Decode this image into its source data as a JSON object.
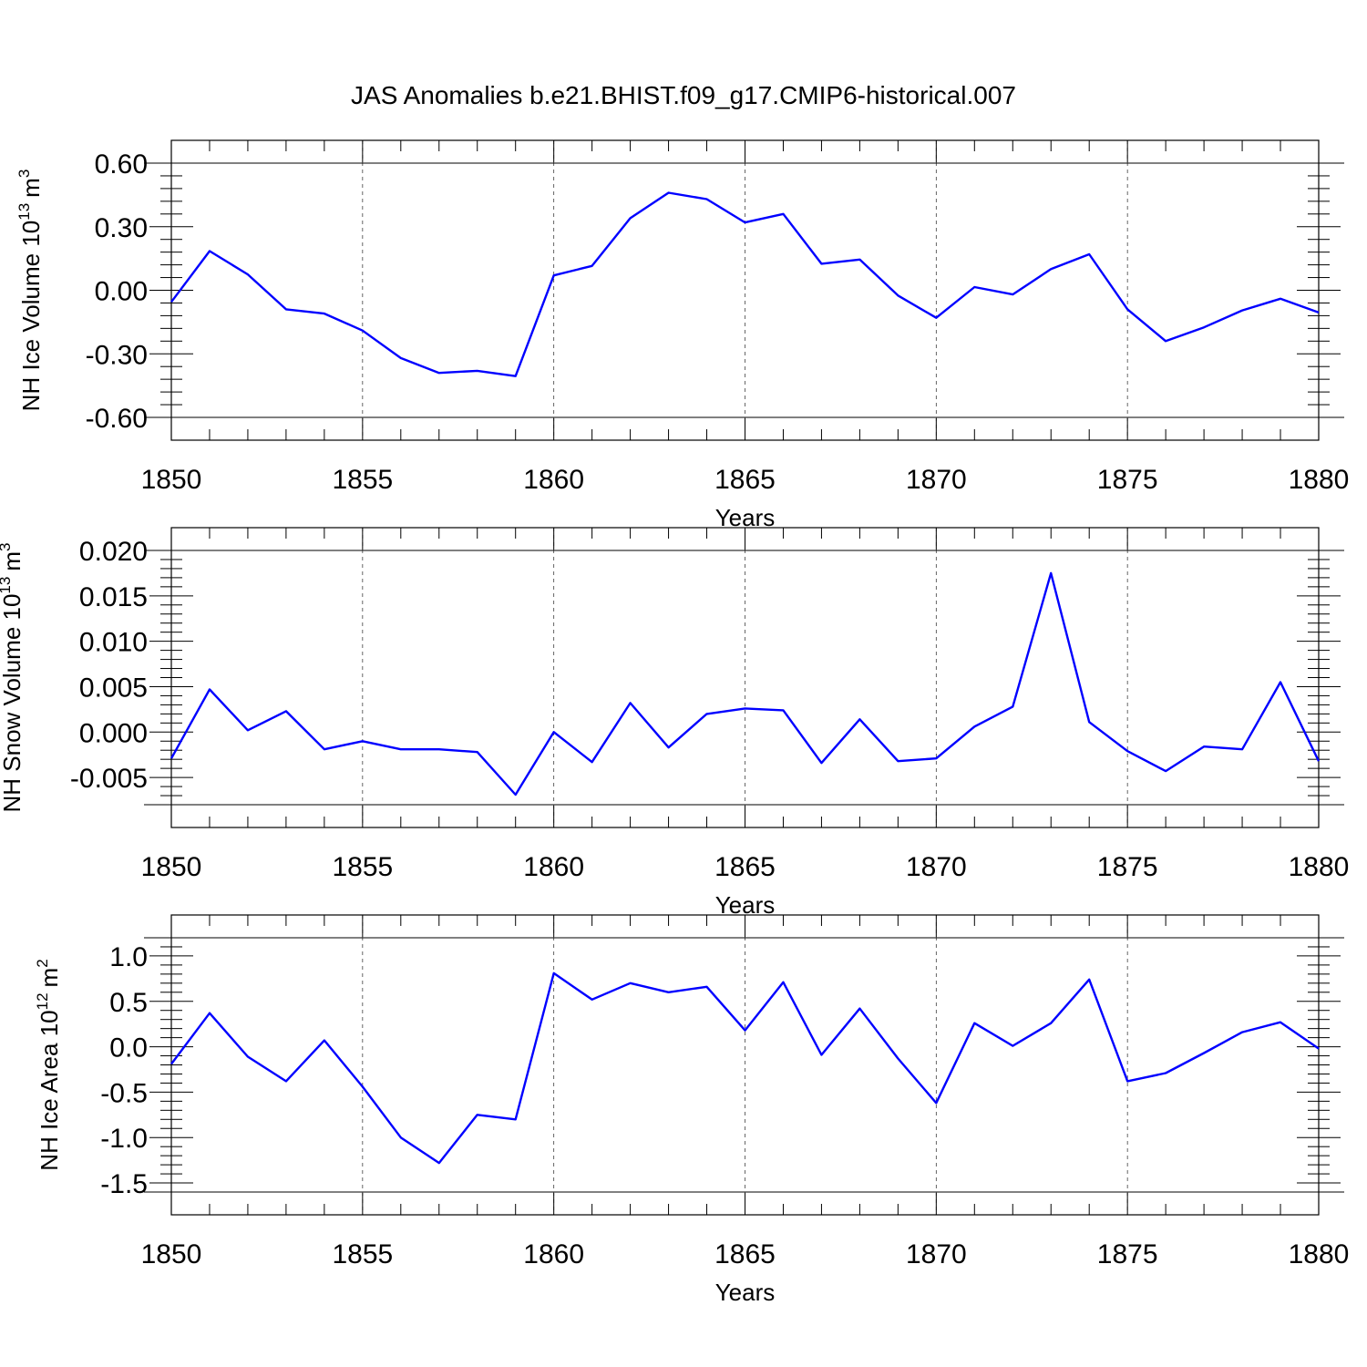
{
  "title": "JAS Anomalies b.e21.BHIST.f09_g17.CMIP6-historical.007",
  "line_color": "#0000ff",
  "chart_data": [
    {
      "type": "line",
      "ylabel": "NH Ice Volume 10",
      "ylabel_exp": "13",
      "ylabel_unit": "m",
      "ylabel_unit_exp": "3",
      "xlabel": "Years",
      "xlim": [
        1850,
        1880
      ],
      "ylim": [
        -0.6,
        0.6
      ],
      "yticks": [
        {
          "value": 0.6,
          "label": "0.60"
        },
        {
          "value": 0.3,
          "label": "0.30"
        },
        {
          "value": 0.0,
          "label": "0.00"
        },
        {
          "value": -0.3,
          "label": "-0.30"
        },
        {
          "value": -0.6,
          "label": "-0.60"
        }
      ],
      "xticks": [
        {
          "value": 1850,
          "label": "1850"
        },
        {
          "value": 1855,
          "label": "1855"
        },
        {
          "value": 1860,
          "label": "1860"
        },
        {
          "value": 1865,
          "label": "1865"
        },
        {
          "value": 1870,
          "label": "1870"
        },
        {
          "value": 1875,
          "label": "1875"
        },
        {
          "value": 1880,
          "label": "1880"
        }
      ],
      "grid": "vertical dashed at labeled years",
      "x": [
        1850,
        1851,
        1852,
        1853,
        1854,
        1855,
        1856,
        1857,
        1858,
        1859,
        1860,
        1861,
        1862,
        1863,
        1864,
        1865,
        1866,
        1867,
        1868,
        1869,
        1870,
        1871,
        1872,
        1873,
        1874,
        1875,
        1876,
        1877,
        1878,
        1879,
        1880
      ],
      "values": [
        -0.055,
        0.185,
        0.075,
        -0.09,
        -0.11,
        -0.19,
        -0.32,
        -0.39,
        -0.38,
        -0.405,
        0.07,
        0.115,
        0.34,
        0.46,
        0.43,
        0.32,
        0.36,
        0.125,
        0.145,
        -0.025,
        -0.13,
        0.015,
        -0.02,
        0.1,
        0.17,
        -0.09,
        -0.24,
        -0.175,
        -0.095,
        -0.04,
        -0.105
      ]
    },
    {
      "type": "line",
      "ylabel": "NH Snow Volume 10",
      "ylabel_exp": "13",
      "ylabel_unit": "m",
      "ylabel_unit_exp": "3",
      "xlabel": "Years",
      "xlim": [
        1850,
        1880
      ],
      "ylim": [
        -0.008,
        0.02
      ],
      "yticks": [
        {
          "value": 0.02,
          "label": "0.020"
        },
        {
          "value": 0.015,
          "label": "0.015"
        },
        {
          "value": 0.01,
          "label": "0.010"
        },
        {
          "value": 0.005,
          "label": "0.005"
        },
        {
          "value": 0.0,
          "label": "0.000"
        },
        {
          "value": -0.005,
          "label": "-0.005"
        }
      ],
      "xticks": [
        {
          "value": 1850,
          "label": "1850"
        },
        {
          "value": 1855,
          "label": "1855"
        },
        {
          "value": 1860,
          "label": "1860"
        },
        {
          "value": 1865,
          "label": "1865"
        },
        {
          "value": 1870,
          "label": "1870"
        },
        {
          "value": 1875,
          "label": "1875"
        },
        {
          "value": 1880,
          "label": "1880"
        }
      ],
      "grid": "vertical dashed at labeled years",
      "x": [
        1850,
        1851,
        1852,
        1853,
        1854,
        1855,
        1856,
        1857,
        1858,
        1859,
        1860,
        1861,
        1862,
        1863,
        1864,
        1865,
        1866,
        1867,
        1868,
        1869,
        1870,
        1871,
        1872,
        1873,
        1874,
        1875,
        1876,
        1877,
        1878,
        1879,
        1880
      ],
      "values": [
        -0.0029,
        0.0047,
        0.0002,
        0.0023,
        -0.0019,
        -0.001,
        -0.0019,
        -0.0019,
        -0.0022,
        -0.0069,
        0.0,
        -0.0033,
        0.0032,
        -0.0017,
        0.002,
        0.0026,
        0.0024,
        -0.0034,
        0.0014,
        -0.0032,
        -0.0029,
        0.0006,
        0.0028,
        0.0175,
        0.0011,
        -0.0021,
        -0.0043,
        -0.0016,
        -0.0019,
        0.0055,
        -0.0032
      ]
    },
    {
      "type": "line",
      "ylabel": "NH Ice Area 10",
      "ylabel_exp": "12",
      "ylabel_unit": "m",
      "ylabel_unit_exp": "2",
      "xlabel": "Years",
      "xlim": [
        1850,
        1880
      ],
      "ylim": [
        -1.6,
        1.2
      ],
      "yticks": [
        {
          "value": 1.0,
          "label": "1.0"
        },
        {
          "value": 0.5,
          "label": "0.5"
        },
        {
          "value": 0.0,
          "label": "0.0"
        },
        {
          "value": -0.5,
          "label": "-0.5"
        },
        {
          "value": -1.0,
          "label": "-1.0"
        },
        {
          "value": -1.5,
          "label": "-1.5"
        }
      ],
      "xticks": [
        {
          "value": 1850,
          "label": "1850"
        },
        {
          "value": 1855,
          "label": "1855"
        },
        {
          "value": 1860,
          "label": "1860"
        },
        {
          "value": 1865,
          "label": "1865"
        },
        {
          "value": 1870,
          "label": "1870"
        },
        {
          "value": 1875,
          "label": "1875"
        },
        {
          "value": 1880,
          "label": "1880"
        }
      ],
      "grid": "vertical dashed at labeled years",
      "x": [
        1850,
        1851,
        1852,
        1853,
        1854,
        1855,
        1856,
        1857,
        1858,
        1859,
        1860,
        1861,
        1862,
        1863,
        1864,
        1865,
        1866,
        1867,
        1868,
        1869,
        1870,
        1871,
        1872,
        1873,
        1874,
        1875,
        1876,
        1877,
        1878,
        1879,
        1880
      ],
      "values": [
        -0.19,
        0.37,
        -0.11,
        -0.38,
        0.07,
        -0.44,
        -1.0,
        -1.28,
        -0.75,
        -0.8,
        0.81,
        0.52,
        0.7,
        0.6,
        0.66,
        0.18,
        0.71,
        -0.09,
        0.42,
        -0.13,
        -0.62,
        0.26,
        0.01,
        0.26,
        0.74,
        -0.38,
        -0.29,
        -0.07,
        0.16,
        0.27,
        -0.02
      ]
    }
  ]
}
